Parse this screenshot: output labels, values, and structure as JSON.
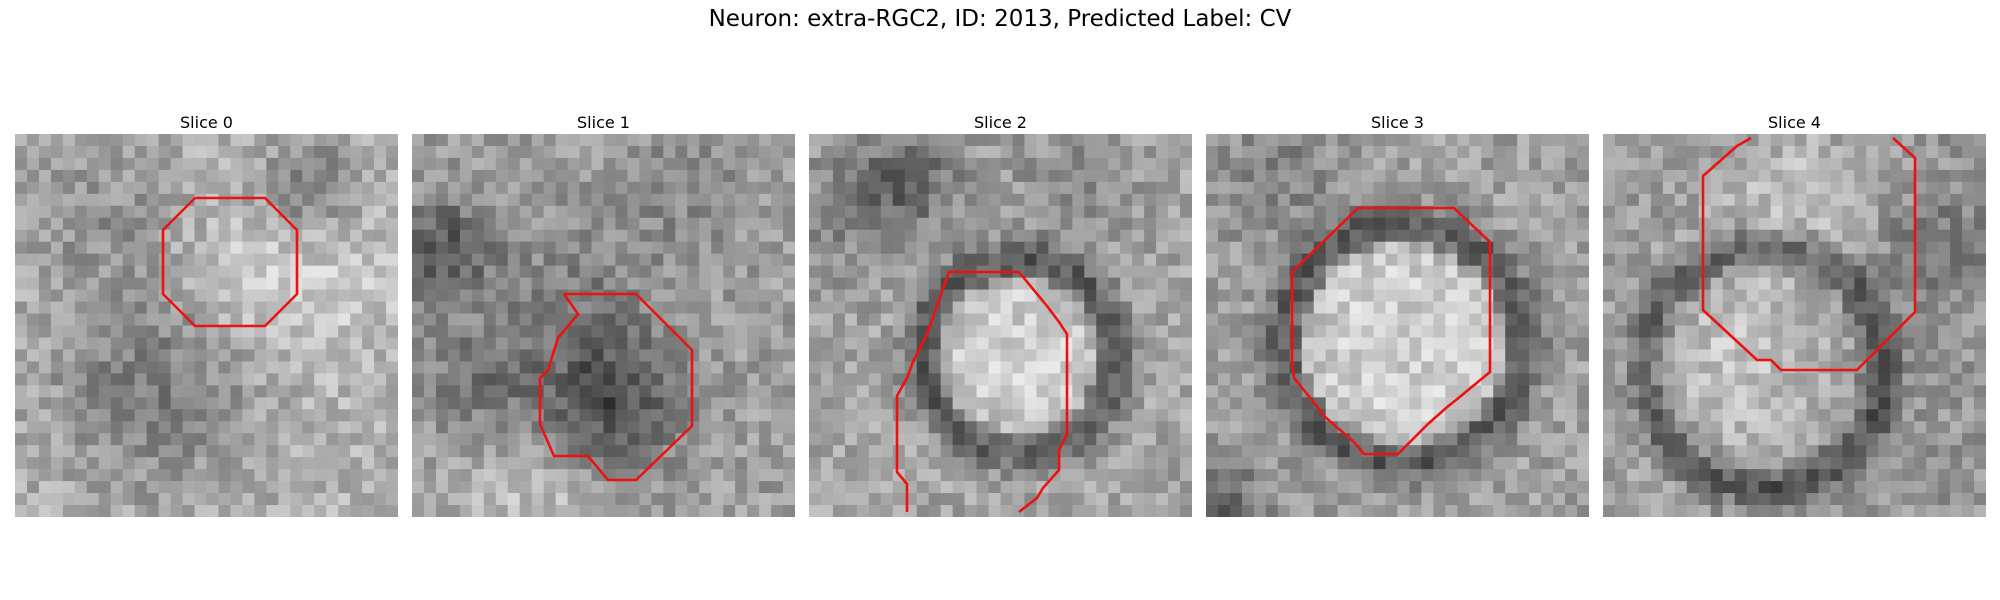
{
  "figure": {
    "title": "Neuron: extra-RGC2, ID: 2013, Predicted Label: CV"
  },
  "panels": [
    {
      "title": "Slice 0"
    },
    {
      "title": "Slice 1"
    },
    {
      "title": "Slice 2"
    },
    {
      "title": "Slice 3"
    },
    {
      "title": "Slice 4"
    }
  ],
  "colors": {
    "contour": "#ee1111",
    "background": "#ffffff"
  }
}
